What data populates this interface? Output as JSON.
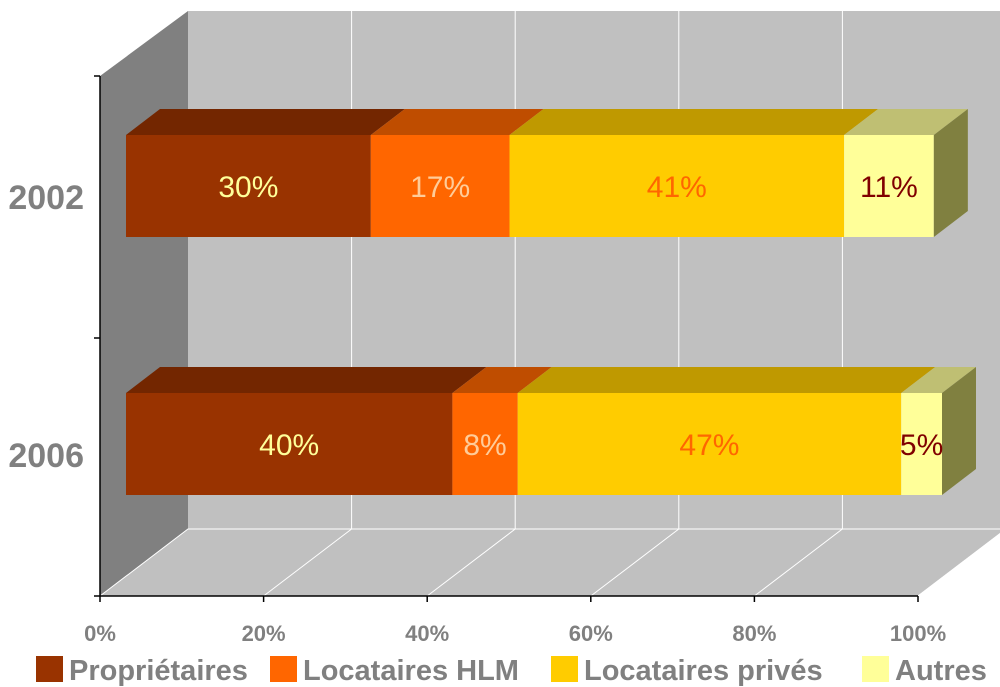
{
  "chart_data": {
    "type": "bar",
    "orientation": "horizontal",
    "stacked": "percent",
    "three_d": true,
    "categories": [
      "2002",
      "2006"
    ],
    "series": [
      {
        "name": "Propriétaires",
        "values": [
          30,
          40
        ],
        "labels": [
          "30%",
          "40%"
        ],
        "color": "#993300",
        "label_color": "#FFFF99"
      },
      {
        "name": "Locataires HLM",
        "values": [
          17,
          8
        ],
        "labels": [
          "17%",
          "8%"
        ],
        "color": "#FF6600",
        "label_color": "#FFCC99"
      },
      {
        "name": "Locataires privés",
        "values": [
          41,
          47
        ],
        "labels": [
          "41%",
          "47%"
        ],
        "color": "#FFCC00",
        "label_color": "#FF6600"
      },
      {
        "name": "Autres",
        "values": [
          11,
          5
        ],
        "labels": [
          "11%",
          "5%"
        ],
        "color": "#FFFF99",
        "label_color": "#800000"
      }
    ],
    "xlim": [
      0,
      100
    ],
    "xticks": [
      "0%",
      "20%",
      "40%",
      "60%",
      "80%",
      "100%"
    ],
    "grid": true,
    "legend_position": "bottom",
    "colors": {
      "wall": "#C0C0C0",
      "side_wall": "#808080",
      "axis_text": "#808080"
    }
  }
}
